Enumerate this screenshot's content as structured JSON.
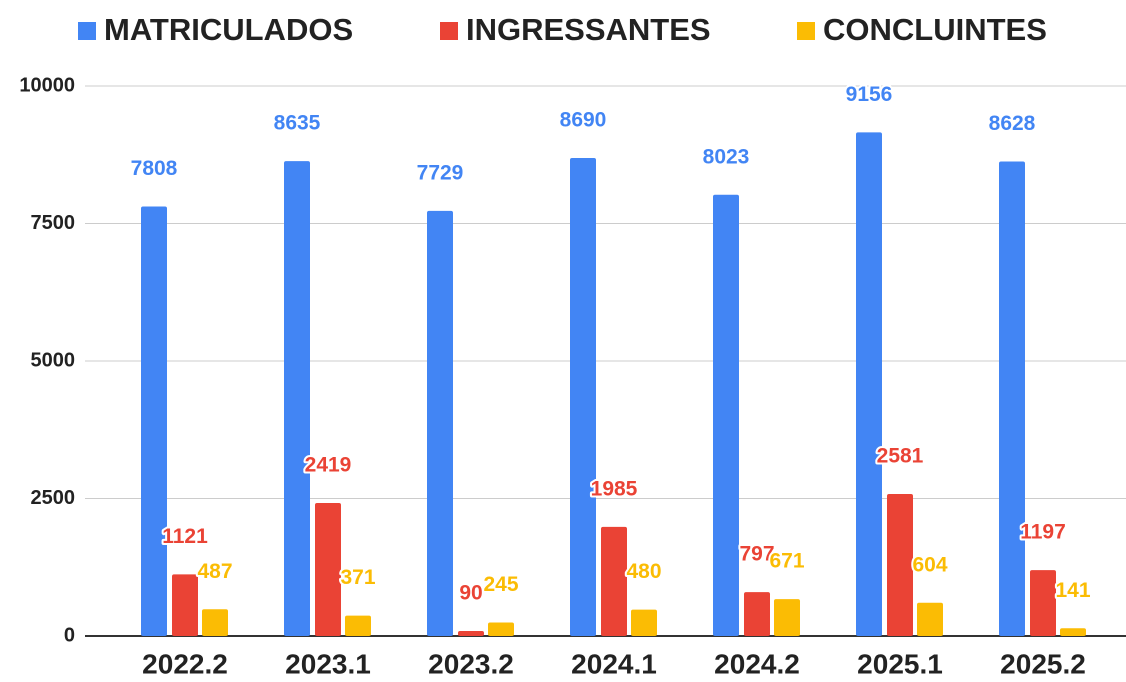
{
  "chart_data": {
    "type": "bar",
    "categories": [
      "2022.2",
      "2023.1",
      "2023.2",
      "2024.1",
      "2024.2",
      "2025.1",
      "2025.2"
    ],
    "series": [
      {
        "name": "MATRICULADOS",
        "color": "#4285f4",
        "values": [
          7808,
          8635,
          7729,
          8690,
          8023,
          9156,
          8628
        ]
      },
      {
        "name": "INGRESSANTES",
        "color": "#ea4335",
        "values": [
          1121,
          2419,
          90,
          1985,
          797,
          2581,
          1197
        ]
      },
      {
        "name": "CONCLUINTES",
        "color": "#fbbc04",
        "values": [
          487,
          371,
          245,
          480,
          671,
          604,
          141
        ]
      }
    ],
    "ylim": [
      0,
      10000
    ],
    "yticks": [
      0,
      2500,
      5000,
      7500,
      10000
    ],
    "grid": true,
    "legend": "top"
  }
}
